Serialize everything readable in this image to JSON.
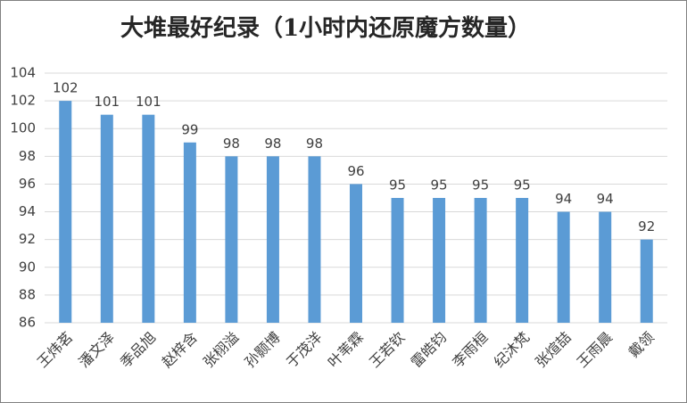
{
  "chart_data": {
    "type": "bar",
    "title": "大堆最好纪录（1小时内还原魔方数量）",
    "categories": [
      "王炜茗",
      "潘文泽",
      "季品旭",
      "赵梓含",
      "张栩溢",
      "孙颢博",
      "于茂洋",
      "叶苇霖",
      "王若钦",
      "雷皓钧",
      "李雨桓",
      "纪沐梵",
      "张煊喆",
      "王雨晨",
      "戴领"
    ],
    "values": [
      102,
      101,
      101,
      99,
      98,
      98,
      98,
      96,
      95,
      95,
      95,
      95,
      94,
      94,
      92
    ],
    "color": "#5b9bd5",
    "ylim": [
      86,
      104
    ],
    "yticks": [
      86,
      88,
      90,
      92,
      94,
      96,
      98,
      100,
      102,
      104
    ],
    "grid": true
  }
}
